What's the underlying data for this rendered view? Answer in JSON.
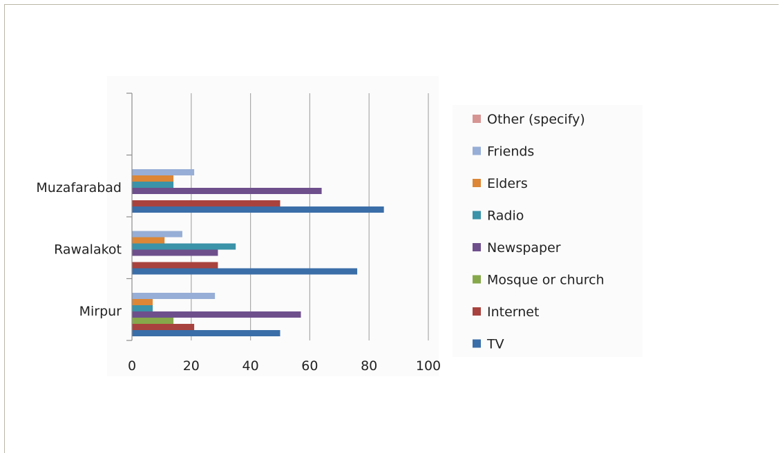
{
  "chart_data": {
    "type": "bar",
    "orientation": "horizontal",
    "categories": [
      "Mirpur",
      "Rawalakot",
      "Muzafarabad"
    ],
    "series": [
      {
        "name": "TV",
        "color": "#3a6ea8",
        "values": [
          50,
          76,
          85
        ]
      },
      {
        "name": "Internet",
        "color": "#a8423e",
        "values": [
          21,
          29,
          50
        ]
      },
      {
        "name": "Mosque or church",
        "color": "#86a84a",
        "values": [
          14,
          0,
          0
        ]
      },
      {
        "name": "Newspaper",
        "color": "#6e4f8c",
        "values": [
          57,
          29,
          64
        ]
      },
      {
        "name": "Radio",
        "color": "#3a93a8",
        "values": [
          7,
          35,
          14
        ]
      },
      {
        "name": "Elders",
        "color": "#dc8636",
        "values": [
          7,
          11,
          14
        ]
      },
      {
        "name": "Friends",
        "color": "#97aed6",
        "values": [
          28,
          17,
          21
        ]
      },
      {
        "name": "Other (specify)",
        "color": "#d69593",
        "values": [
          0,
          0,
          0
        ]
      }
    ],
    "legend_order": [
      "Other (specify)",
      "Friends",
      "Elders",
      "Radio",
      "Newspaper",
      "Mosque or church",
      "Internet",
      "TV"
    ],
    "xlim": [
      0,
      100
    ],
    "xticks": [
      "0",
      "20",
      "40",
      "60",
      "80",
      "100"
    ],
    "grid": "vertical",
    "legend_position": "right",
    "title": "",
    "xlabel": "",
    "ylabel": ""
  }
}
